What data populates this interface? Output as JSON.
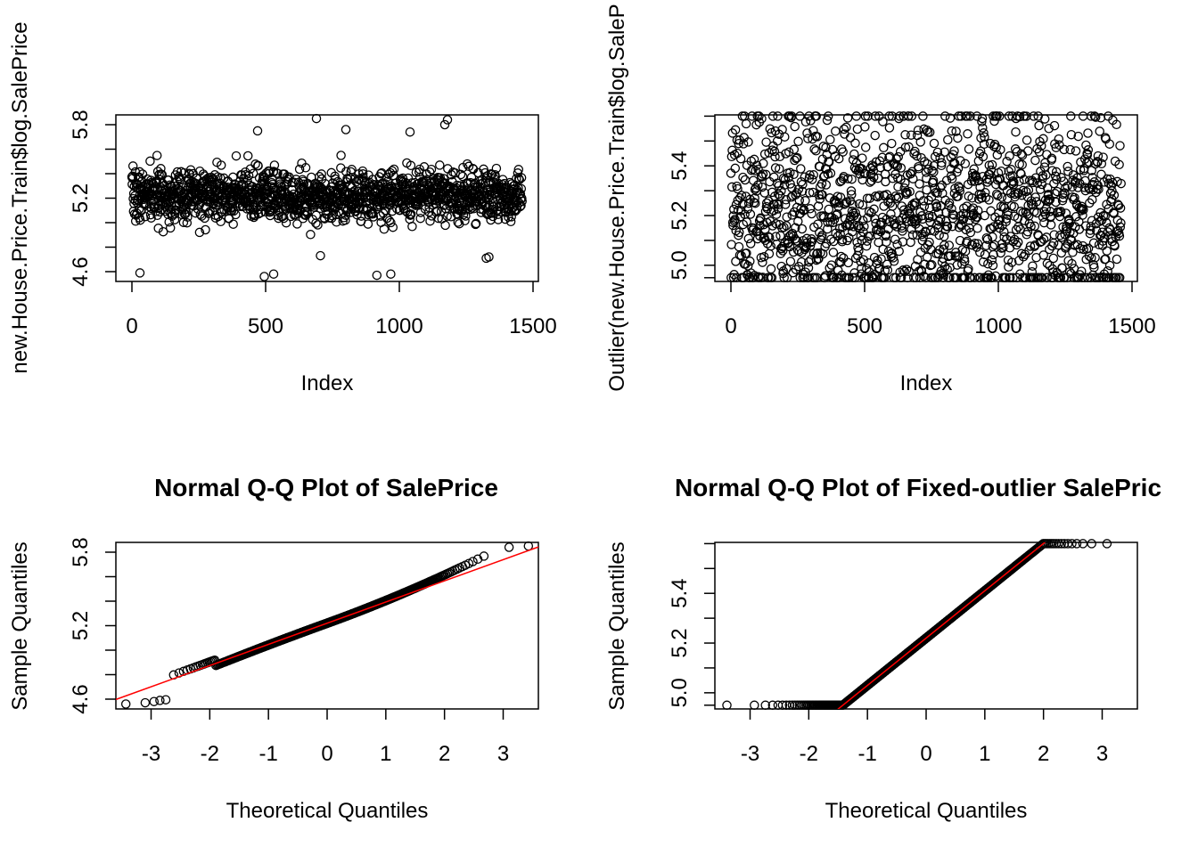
{
  "chart_data": [
    {
      "type": "scatter",
      "title": "",
      "xlabel": "Index",
      "ylabel": "new.House.Price.Train$log.SalePrice",
      "xlim": [
        -60,
        1520
      ],
      "ylim": [
        4.52,
        5.88
      ],
      "xticks": [
        0,
        500,
        1000,
        1500
      ],
      "xtick_labels": [
        "0",
        "500",
        "1000",
        "1500"
      ],
      "yticks": [
        4.6,
        5.2,
        5.8
      ],
      "yticks_minor": [
        4.8,
        5.0,
        5.4,
        5.6
      ],
      "ytick_labels": [
        "4.6",
        "5.2",
        "5.8"
      ],
      "n_points": 1460,
      "center": 5.22,
      "spread": 0.17,
      "min": 4.56,
      "max": 5.86,
      "notable_points": [
        {
          "x": 30,
          "y": 4.59
        },
        {
          "x": 495,
          "y": 4.56
        },
        {
          "x": 530,
          "y": 4.58
        },
        {
          "x": 690,
          "y": 5.85
        },
        {
          "x": 916,
          "y": 4.57
        },
        {
          "x": 968,
          "y": 4.58
        },
        {
          "x": 1180,
          "y": 5.84
        },
        {
          "x": 1170,
          "y": 5.8
        },
        {
          "x": 470,
          "y": 5.75
        },
        {
          "x": 800,
          "y": 5.76
        },
        {
          "x": 1040,
          "y": 5.74
        },
        {
          "x": 705,
          "y": 4.73
        },
        {
          "x": 1325,
          "y": 4.71
        },
        {
          "x": 1335,
          "y": 4.72
        }
      ],
      "grid": false,
      "legend": "none",
      "marker": "open circle",
      "marker_color": "#000000"
    },
    {
      "type": "scatter",
      "title": "",
      "xlabel": "Index",
      "ylabel": "Outlier(new.House.Price.Train$log.SaleP",
      "xlim": [
        -60,
        1520
      ],
      "ylim": [
        4.935,
        5.605
      ],
      "xticks": [
        0,
        500,
        1000,
        1500
      ],
      "xtick_labels": [
        "0",
        "500",
        "1000",
        "1500"
      ],
      "yticks": [
        5.0,
        5.2,
        5.4
      ],
      "yticks_minor": [
        4.95,
        5.1,
        5.3,
        5.5,
        5.6
      ],
      "ytick_labels": [
        "5.0",
        "5.2",
        "5.4"
      ],
      "n_points": 1460,
      "center": 5.22,
      "spread": 0.17,
      "lower_cap": 4.95,
      "upper_cap": 5.6,
      "grid": false,
      "legend": "none",
      "marker": "open circle",
      "marker_color": "#000000"
    },
    {
      "type": "scatter",
      "title": "Normal Q-Q Plot of SalePrice",
      "xlabel": "Theoretical Quantiles",
      "ylabel": "Sample Quantiles",
      "xlim": [
        -3.6,
        3.6
      ],
      "ylim": [
        4.52,
        5.88
      ],
      "xticks": [
        -3,
        -2,
        -1,
        0,
        1,
        2,
        3
      ],
      "xtick_labels": [
        "-3",
        "-2",
        "-1",
        "0",
        "1",
        "2",
        "3"
      ],
      "yticks": [
        4.6,
        5.2,
        5.8
      ],
      "yticks_minor": [
        4.8,
        5.0,
        5.4,
        5.6
      ],
      "ytick_labels": [
        "4.6",
        "5.2",
        "5.8"
      ],
      "n_points": 1460,
      "mean": 5.22,
      "sd": 0.173,
      "qq_line": {
        "intercept": 5.22,
        "slope": 0.173,
        "color": "#ff0000"
      },
      "notable_points": [
        {
          "x": -3.43,
          "y": 4.56
        },
        {
          "x": -3.1,
          "y": 4.57
        },
        {
          "x": -2.95,
          "y": 4.58
        },
        {
          "x": -2.85,
          "y": 4.59
        },
        {
          "x": -2.75,
          "y": 4.595
        },
        {
          "x": 3.1,
          "y": 5.84
        },
        {
          "x": 3.43,
          "y": 5.85
        }
      ],
      "grid": false,
      "legend": "none",
      "marker": "open circle",
      "marker_color": "#000000"
    },
    {
      "type": "scatter",
      "title": "Normal Q-Q Plot of Fixed-outlier SalePric",
      "xlabel": "Theoretical Quantiles",
      "ylabel": "Sample Quantiles",
      "xlim": [
        -3.6,
        3.6
      ],
      "ylim": [
        4.935,
        5.605
      ],
      "xticks": [
        -3,
        -2,
        -1,
        0,
        1,
        2,
        3
      ],
      "xtick_labels": [
        "-3",
        "-2",
        "-1",
        "0",
        "1",
        "2",
        "3"
      ],
      "yticks": [
        5.0,
        5.2,
        5.4
      ],
      "yticks_minor": [
        4.95,
        5.1,
        5.3,
        5.5,
        5.6
      ],
      "ytick_labels": [
        "5.0",
        "5.2",
        "5.4"
      ],
      "n_points": 1460,
      "mean": 5.22,
      "sd": 0.173,
      "lower_cap": 4.95,
      "upper_cap": 5.6,
      "qq_line": {
        "intercept": 5.22,
        "slope": 0.173,
        "color": "#ff0000"
      },
      "grid": false,
      "legend": "none",
      "marker": "open circle",
      "marker_color": "#000000"
    }
  ]
}
